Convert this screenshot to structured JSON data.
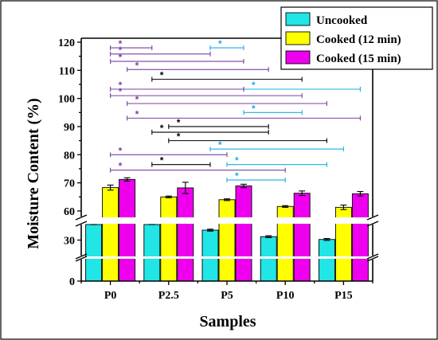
{
  "chart_data": {
    "type": "bar",
    "title": "",
    "xlabel": "Samples",
    "ylabel": "Moisture Content (%)",
    "categories": [
      "P0",
      "P2.5",
      "P5",
      "P10",
      "P15"
    ],
    "y_axis": {
      "broken": true,
      "segments": [
        {
          "range": [
            0,
            10
          ],
          "ticks": [
            0
          ]
        },
        {
          "range": [
            25,
            35
          ],
          "ticks": [
            30
          ]
        },
        {
          "range": [
            58,
            120
          ],
          "ticks": [
            60,
            70,
            80,
            90,
            100,
            110,
            120
          ]
        }
      ]
    },
    "series": [
      {
        "name": "Uncooked",
        "color": "#22E5E5",
        "values": [
          35.7,
          35.6,
          33.2,
          31.1,
          30.2
        ],
        "errors": [
          0.4,
          0.3,
          0.3,
          0.3,
          0.3
        ]
      },
      {
        "name": "Cooked (12 min)",
        "color": "#FFFF00",
        "values": [
          68.3,
          65.0,
          64.0,
          61.6,
          61.3
        ],
        "errors": [
          0.9,
          0.3,
          0.3,
          0.3,
          0.8
        ]
      },
      {
        "name": "Cooked (15 min)",
        "color": "#EE00EE",
        "values": [
          71.2,
          68.2,
          68.9,
          66.3,
          66.1
        ],
        "errors": [
          0.6,
          2.0,
          0.6,
          0.8,
          0.8
        ]
      }
    ],
    "legend_position": "top-right",
    "significance_marker": "*",
    "significance_brackets": [
      {
        "y": 118.0,
        "from": "P0.Cooked (12 min)",
        "to": "P2.5.Uncooked",
        "color": "#7B3FA0",
        "label": "*"
      },
      {
        "y": 118.0,
        "from": "P5.Uncooked",
        "to": "P5.Cooked (15 min)",
        "color": "#1AAEE0",
        "label": "*"
      },
      {
        "y": 115.8,
        "from": "P0.Cooked (12 min)",
        "to": "P5.Uncooked",
        "color": "#7B3FA0",
        "label": "*"
      },
      {
        "y": 113.2,
        "from": "P0.Cooked (12 min)",
        "to": "P5.Cooked (15 min)",
        "color": "#7B3FA0",
        "label": "*"
      },
      {
        "y": 110.3,
        "from": "P0.Cooked (15 min)",
        "to": "P10.Uncooked",
        "color": "#7B3FA0",
        "label": "*"
      },
      {
        "y": 106.8,
        "from": "P2.5.Uncooked",
        "to": "P10.Cooked (15 min)",
        "color": "#000000",
        "label": "*"
      },
      {
        "y": 103.3,
        "from": "P5.Cooked (15 min)",
        "to": "P15.Cooked (15 min)",
        "color": "#1AAEE0",
        "label": "*"
      },
      {
        "y": 103.3,
        "from": "P0.Cooked (12 min)",
        "to": "P5.Cooked (15 min)",
        "color": "#7B3FA0",
        "label": "*"
      },
      {
        "y": 101.0,
        "from": "P0.Cooked (12 min)",
        "to": "P10.Cooked (15 min)",
        "color": "#7B3FA0",
        "label": "*"
      },
      {
        "y": 98.2,
        "from": "P0.Cooked (15 min)",
        "to": "P15.Uncooked",
        "color": "#7B3FA0",
        "label": "*"
      },
      {
        "y": 95.0,
        "from": "P5.Cooked (15 min)",
        "to": "P10.Cooked (15 min)",
        "color": "#1AAEE0",
        "label": "*"
      },
      {
        "y": 93.0,
        "from": "P0.Cooked (15 min)",
        "to": "P15.Cooked (15 min)",
        "color": "#7B3FA0",
        "label": "*"
      },
      {
        "y": 90.0,
        "from": "P2.5.Cooked (12 min)",
        "to": "P10.Uncooked",
        "color": "#000000",
        "label": "*"
      },
      {
        "y": 88.0,
        "from": "P2.5.Uncooked",
        "to": "P10.Uncooked",
        "color": "#000000",
        "label": "*"
      },
      {
        "y": 85.0,
        "from": "P2.5.Cooked (12 min)",
        "to": "P15.Uncooked",
        "color": "#000000",
        "label": "*"
      },
      {
        "y": 82.0,
        "from": "P5.Uncooked",
        "to": "P15.Cooked (12 min)",
        "color": "#1AAEE0",
        "label": "*"
      },
      {
        "y": 80.0,
        "from": "P0.Cooked (12 min)",
        "to": "P5.Cooked (12 min)",
        "color": "#7B3FA0",
        "label": "*"
      },
      {
        "y": 76.5,
        "from": "P2.5.Uncooked",
        "to": "P5.Uncooked",
        "color": "#000000",
        "label": "*"
      },
      {
        "y": 76.5,
        "from": "P5.Cooked (12 min)",
        "to": "P15.Uncooked",
        "color": "#1AAEE0",
        "label": "*"
      },
      {
        "y": 74.5,
        "from": "P0.Cooked (12 min)",
        "to": "P10.Cooked (12 min)",
        "color": "#7B3FA0",
        "label": "*"
      },
      {
        "y": 71.0,
        "from": "P5.Cooked (12 min)",
        "to": "P10.Cooked (12 min)",
        "color": "#1AAEE0",
        "label": "*"
      }
    ]
  }
}
